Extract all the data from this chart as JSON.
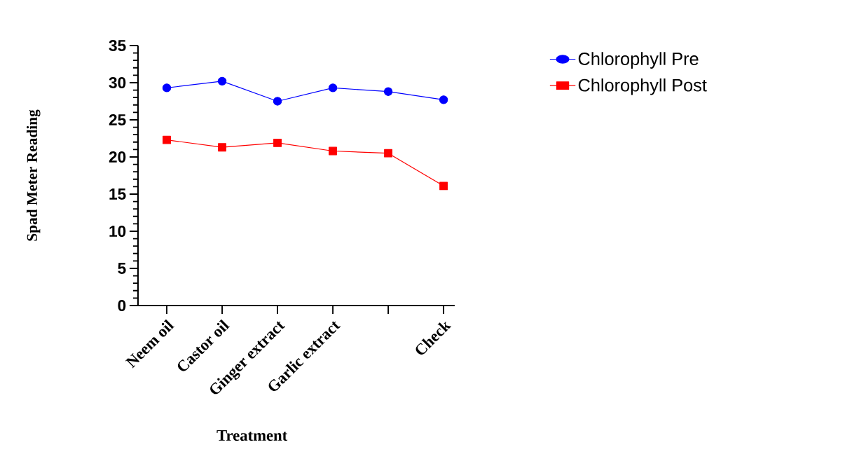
{
  "chart_data": {
    "type": "line",
    "xlabel": "Treatment",
    "ylabel": "Spad Meter Reading",
    "categories": [
      "Neem oil",
      "Castor oil",
      "Ginger extract",
      "Garlic extract",
      null,
      "Check"
    ],
    "series": [
      {
        "name": "Chlorophyll Pre",
        "color": "#0000ff",
        "marker": "circle",
        "values": [
          29.3,
          30.2,
          27.5,
          29.3,
          28.8,
          27.7
        ]
      },
      {
        "name": "Chlorophyll Post",
        "color": "#ff0000",
        "marker": "square",
        "values": [
          22.3,
          21.3,
          21.9,
          20.8,
          20.5,
          16.1
        ]
      }
    ],
    "ylim": [
      0,
      35
    ],
    "yticks": [
      0,
      5,
      10,
      15,
      20,
      25,
      30,
      35
    ],
    "legend": "top right",
    "grid": false,
    "line_style": "solid"
  }
}
